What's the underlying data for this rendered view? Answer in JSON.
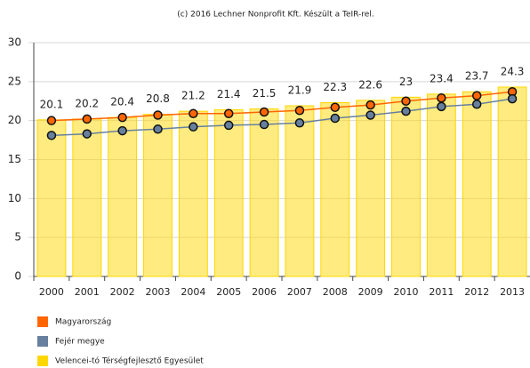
{
  "chart_data": {
    "type": "bar_line",
    "title": "(c) 2016 Lechner Nonprofit Kft. Készült a TeIR-rel.",
    "categories": [
      "2000",
      "2001",
      "2002",
      "2003",
      "2004",
      "2005",
      "2006",
      "2007",
      "2008",
      "2009",
      "2010",
      "2011",
      "2012",
      "2013"
    ],
    "series": [
      {
        "name": "Magyarország",
        "color": "#ff6600",
        "kind": "line",
        "values": [
          20.0,
          20.2,
          20.4,
          20.7,
          20.9,
          20.9,
          21.1,
          21.3,
          21.7,
          22.0,
          22.5,
          22.9,
          23.2,
          23.7
        ]
      },
      {
        "name": "Fejér megye",
        "color": "#66809e",
        "kind": "line",
        "values": [
          18.1,
          18.3,
          18.7,
          18.9,
          19.2,
          19.4,
          19.5,
          19.7,
          20.3,
          20.7,
          21.2,
          21.8,
          22.1,
          22.8
        ]
      },
      {
        "name": "Velencei-tó Térségfejlesztő Egyesület",
        "color": "#ffd700",
        "kind": "bar",
        "values": [
          20.1,
          20.2,
          20.4,
          20.8,
          21.2,
          21.4,
          21.5,
          21.9,
          22.3,
          22.6,
          23,
          23.4,
          23.7,
          24.3
        ]
      }
    ],
    "ylim": [
      0,
      30
    ],
    "yticks": [
      0,
      5,
      10,
      15,
      20,
      25,
      30
    ],
    "grid": true
  }
}
